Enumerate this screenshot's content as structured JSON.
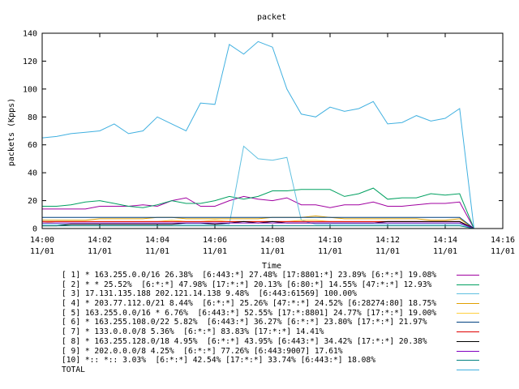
{
  "chart_data": {
    "type": "line",
    "title": "packet",
    "xlabel": "Time",
    "ylabel": "packets (Kpps)",
    "ylim": [
      0,
      140
    ],
    "y_ticks": [
      0,
      20,
      40,
      60,
      80,
      100,
      120,
      140
    ],
    "x_ticks": [
      {
        "time": "14:00",
        "date": "11/01"
      },
      {
        "time": "14:02",
        "date": "11/01"
      },
      {
        "time": "14:04",
        "date": "11/01"
      },
      {
        "time": "14:06",
        "date": "11/01"
      },
      {
        "time": "14:08",
        "date": "11/01"
      },
      {
        "time": "14:10",
        "date": "11/01"
      },
      {
        "time": "14:12",
        "date": "11/01"
      },
      {
        "time": "14:14",
        "date": "11/01"
      },
      {
        "time": "14:16",
        "date": "11/01"
      }
    ],
    "xlim": [
      "14:00",
      "14:16"
    ],
    "grid": false,
    "legend_position": "bottom",
    "x": [
      "14:00",
      "14:00:30",
      "14:01",
      "14:01:30",
      "14:02",
      "14:02:30",
      "14:03",
      "14:03:30",
      "14:04",
      "14:04:30",
      "14:05",
      "14:05:30",
      "14:06",
      "14:06:30",
      "14:07",
      "14:07:30",
      "14:08",
      "14:08:30",
      "14:09",
      "14:09:30",
      "14:10",
      "14:10:30",
      "14:11",
      "14:11:30",
      "14:12",
      "14:12:30",
      "14:13",
      "14:13:30",
      "14:14",
      "14:14:30",
      "14:15"
    ],
    "series": [
      {
        "name": "[ 1] * 163.255.0.0/16 26.38%  [6:443:*] 27.48% [17:8801:*] 23.89% [6:*:*] 19.08%",
        "color": "#a000a0",
        "values": [
          14,
          14,
          14,
          14,
          16,
          16,
          16,
          17,
          16,
          20,
          22,
          16,
          16,
          20,
          23,
          21,
          20,
          22,
          17,
          17,
          15,
          17,
          17,
          19,
          16,
          16,
          17,
          18,
          18,
          19,
          0
        ]
      },
      {
        "name": "[ 2] * * 25.52%  [6:*:*] 47.98% [17:*:*] 20.13% [6:80:*] 14.55% [47:*:*] 12.93%",
        "color": "#00a060",
        "values": [
          16,
          16,
          17,
          19,
          20,
          18,
          16,
          15,
          17,
          20,
          18,
          18,
          20,
          23,
          21,
          23,
          27,
          27,
          28,
          28,
          28,
          23,
          25,
          29,
          21,
          22,
          22,
          25,
          24,
          25,
          0
        ]
      },
      {
        "name": "[ 3] 17.131.135.188 202.121.14.138 9.48%  [6:443:61569] 100.00%",
        "color": "#60c0e0",
        "values": [
          3,
          3,
          3,
          3,
          3,
          3,
          3,
          3,
          3,
          3,
          3,
          3,
          3,
          3,
          59,
          50,
          49,
          51,
          6,
          3,
          3,
          3,
          3,
          3,
          3,
          3,
          3,
          3,
          3,
          3,
          0
        ]
      },
      {
        "name": "[ 4] * 203.77.112.0/21 8.44%  [6:*:*] 25.26% [47:*:*] 24.52% [6:28274:80] 18.75%",
        "color": "#e0a000",
        "values": [
          6,
          6,
          6,
          6,
          7,
          7,
          7,
          7,
          8,
          8,
          7,
          7,
          7,
          7,
          7,
          7,
          8,
          8,
          8,
          9,
          8,
          7,
          7,
          7,
          7,
          7,
          7,
          6,
          6,
          7,
          0
        ]
      },
      {
        "name": "[ 5] 163.255.0.0/16 * 6.76%  [6:443:*] 52.55% [17:*:8801] 24.77% [17:*:*] 19.00%",
        "color": "#ffd040",
        "values": [
          4,
          5,
          5,
          5,
          5,
          5,
          5,
          5,
          5,
          6,
          5,
          5,
          6,
          5,
          5,
          5,
          5,
          5,
          6,
          6,
          5,
          5,
          5,
          5,
          5,
          5,
          5,
          5,
          5,
          5,
          0
        ]
      },
      {
        "name": "[ 6] * 163.255.108.0/22 5.82%  [6:443:*] 36.27% [6:*:*] 23.80% [17:*:*] 21.97%",
        "color": "#004080",
        "values": [
          8,
          8,
          8,
          8,
          8,
          8,
          8,
          8,
          8,
          8,
          8,
          8,
          8,
          8,
          8,
          8,
          8,
          8,
          8,
          8,
          8,
          8,
          8,
          8,
          8,
          8,
          8,
          8,
          8,
          8,
          0
        ]
      },
      {
        "name": "[ 7] * 133.0.0.0/8 5.36%  [6:*:*] 83.83% [17:*:*] 14.41%",
        "color": "#e00000",
        "values": [
          5,
          5,
          5,
          5,
          5,
          5,
          5,
          5,
          5,
          5,
          5,
          5,
          5,
          5,
          5,
          5,
          5,
          5,
          5,
          5,
          5,
          5,
          5,
          5,
          5,
          5,
          5,
          5,
          5,
          5,
          0
        ]
      },
      {
        "name": "[ 8] * 163.255.128.0/18 4.95%  [6:*:*] 43.95% [6:443:*] 34.42% [17:*:*] 20.38%",
        "color": "#000000",
        "values": [
          2,
          2,
          3,
          3,
          3,
          3,
          3,
          3,
          3,
          3,
          4,
          4,
          3,
          4,
          5,
          4,
          5,
          4,
          4,
          4,
          4,
          4,
          4,
          4,
          5,
          5,
          5,
          5,
          5,
          5,
          0
        ]
      },
      {
        "name": "[ 9] * 202.0.0.0/8 4.25%  [6:*:*] 77.26% [6:443:9007] 17.61%",
        "color": "#8000c0",
        "values": [
          4,
          4,
          4,
          4,
          4,
          4,
          4,
          4,
          4,
          4,
          4,
          4,
          4,
          4,
          4,
          4,
          4,
          4,
          4,
          4,
          4,
          4,
          4,
          4,
          4,
          4,
          4,
          4,
          4,
          4,
          0
        ]
      },
      {
        "name": "[10] *:: *:: 3.03%  [6:*:*] 42.54% [17:*:*] 33.74% [6:443:*] 18.08%",
        "color": "#008080",
        "values": [
          2,
          2,
          2,
          2,
          2,
          2,
          2,
          2,
          2,
          2,
          2,
          2,
          2,
          2,
          2,
          2,
          2,
          2,
          2,
          2,
          2,
          2,
          2,
          2,
          2,
          2,
          2,
          2,
          2,
          2,
          0
        ]
      },
      {
        "name": "TOTAL",
        "color": "#40b0e0",
        "values": [
          65,
          66,
          68,
          69,
          70,
          75,
          68,
          70,
          80,
          75,
          70,
          90,
          89,
          132,
          125,
          134,
          130,
          100,
          82,
          80,
          87,
          84,
          86,
          91,
          75,
          76,
          81,
          77,
          79,
          86,
          0
        ]
      }
    ]
  }
}
